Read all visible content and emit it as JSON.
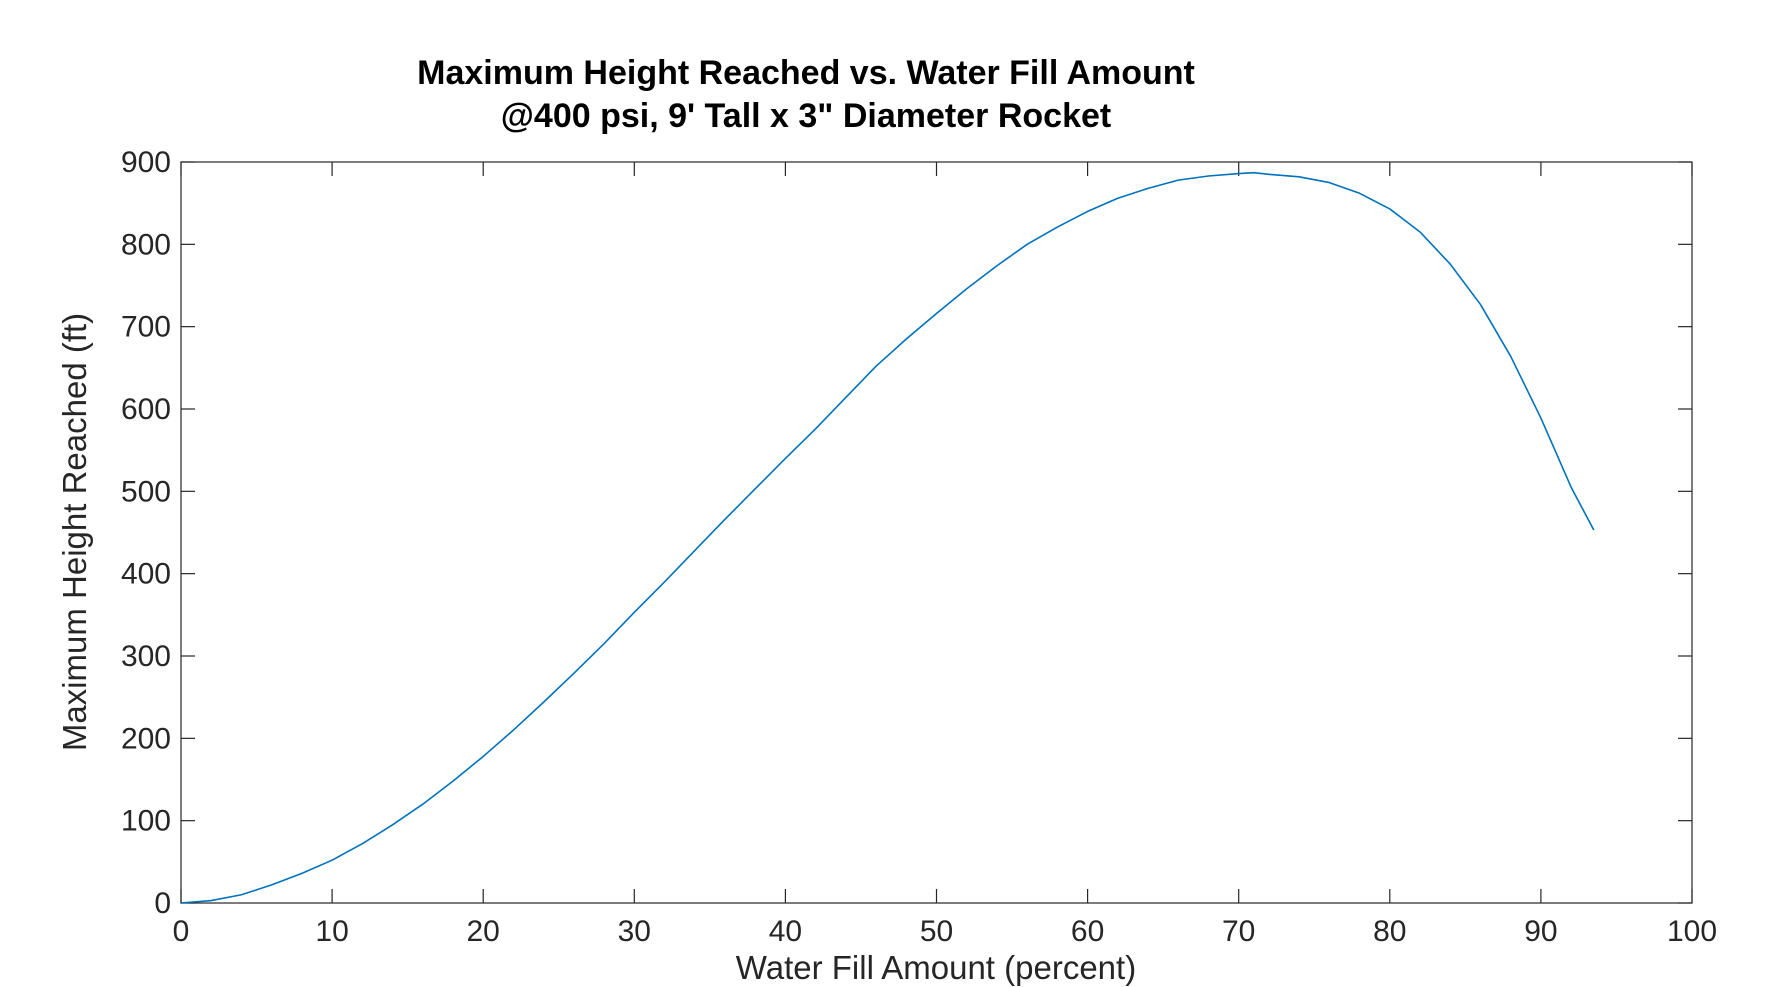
{
  "chart_data": {
    "type": "line",
    "title": "Maximum Height Reached vs. Water Fill Amount",
    "subtitle": "@400 psi, 9' Tall x 3\" Diameter Rocket",
    "xlabel": "Water Fill Amount (percent)",
    "ylabel": "Maximum Height Reached (ft)",
    "xlim": [
      0,
      100
    ],
    "ylim": [
      0,
      900
    ],
    "xticks": [
      0,
      10,
      20,
      30,
      40,
      50,
      60,
      70,
      80,
      90,
      100
    ],
    "yticks": [
      0,
      100,
      200,
      300,
      400,
      500,
      600,
      700,
      800,
      900
    ],
    "grid": false,
    "colors": {
      "line": "#0072BD",
      "axes": "#262626"
    },
    "series": [
      {
        "x": [
          0,
          2,
          4,
          6,
          8,
          10,
          12,
          14,
          16,
          18,
          20,
          22,
          24,
          26,
          28,
          30,
          32,
          34,
          36,
          38,
          40,
          42,
          44,
          46,
          48,
          50,
          52,
          54,
          56,
          58,
          60,
          62,
          64,
          66,
          68,
          70,
          71,
          72,
          74,
          76,
          78,
          80,
          82,
          84,
          86,
          88,
          90,
          92,
          93.5
        ],
        "y": [
          0,
          3,
          10,
          22,
          36,
          52,
          72,
          95,
          120,
          148,
          178,
          210,
          244,
          279,
          315,
          353,
          390,
          428,
          466,
          503,
          540,
          576,
          614,
          652,
          685,
          716,
          746,
          774,
          800,
          821,
          840,
          856,
          868,
          878,
          883,
          886,
          887,
          885,
          882,
          875,
          862,
          843,
          815,
          776,
          727,
          664,
          589,
          505,
          453
        ]
      }
    ]
  }
}
